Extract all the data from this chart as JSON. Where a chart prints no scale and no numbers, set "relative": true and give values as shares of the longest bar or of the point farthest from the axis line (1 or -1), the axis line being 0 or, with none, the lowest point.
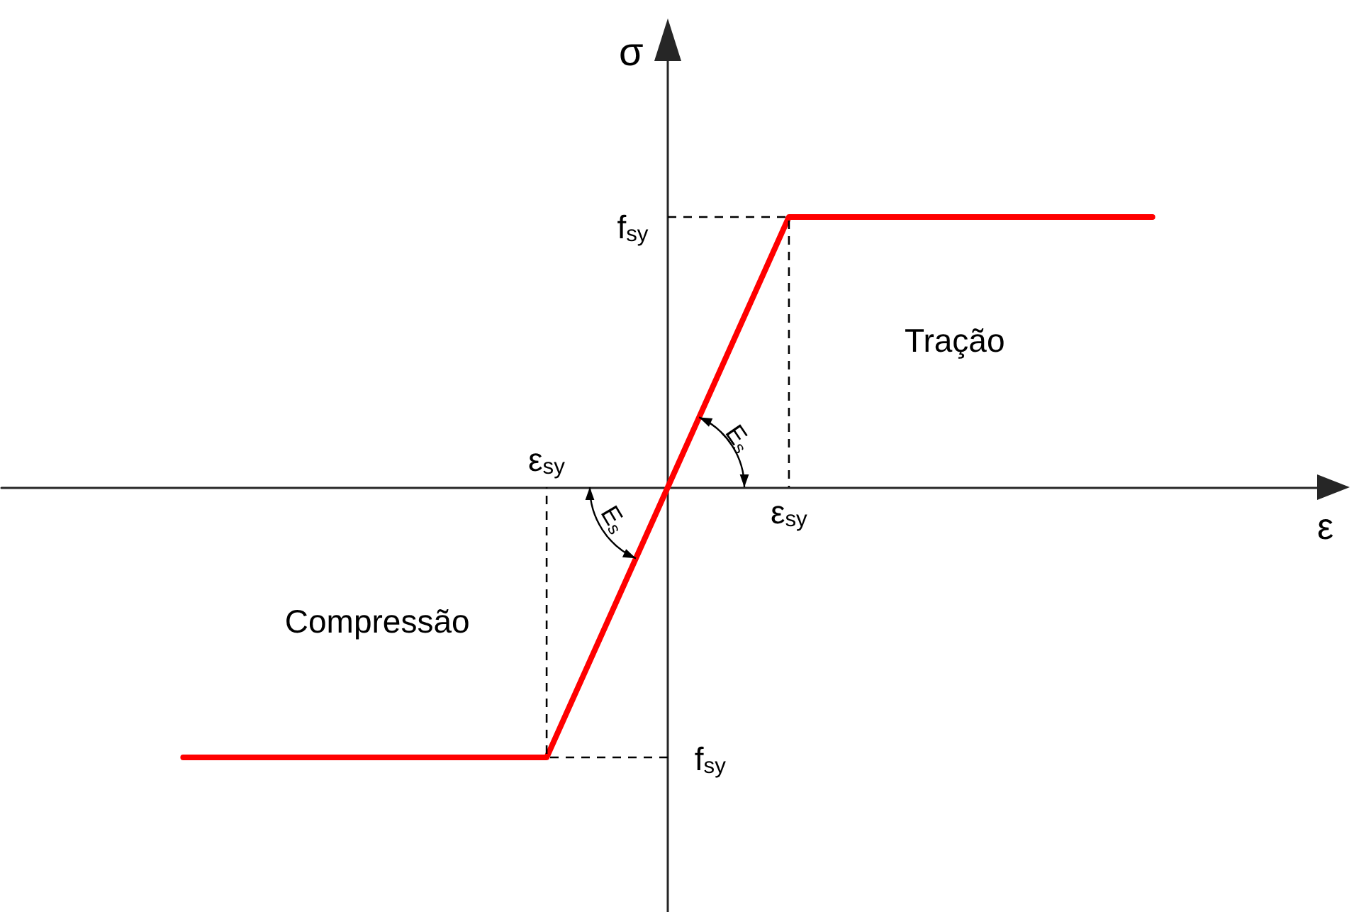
{
  "chart_data": {
    "type": "line",
    "relative": true,
    "xlabel": "ε",
    "ylabel": "σ",
    "categories": [
      null,
      null,
      null,
      null,
      "ε$_{sy}$",
      null,
      "ε$_{sy}$",
      null,
      null,
      null,
      null
    ],
    "series": [
      {
        "color": "#ff0000",
        "values": [
          null,
          -1,
          -1,
          -1,
          -1,
          0,
          1,
          1,
          1,
          1,
          null
        ]
      }
    ],
    "marker": "none",
    "line_style": "solid",
    "grid": false,
    "annotations": [
      "f$_{sy}$",
      "f$_{sy}$",
      "Tração",
      "Compressão",
      "E$_{s}$",
      "E$_{s}$"
    ]
  }
}
